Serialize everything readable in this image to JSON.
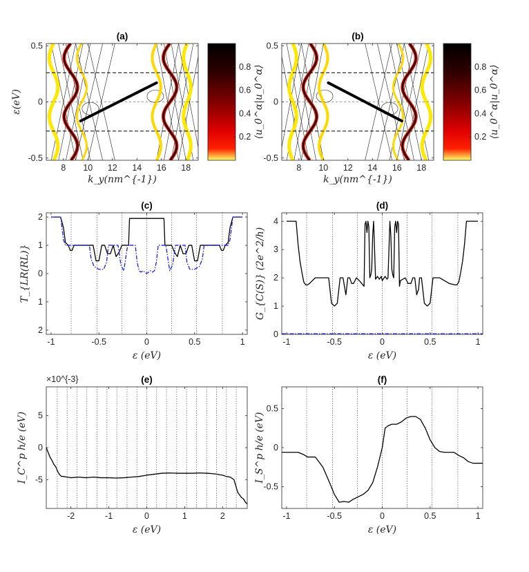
{
  "chart_data": [
    {
      "id": "a",
      "type": "line",
      "title": "(a)",
      "xlabel": "k_y(nm^{-1})",
      "ylabel": "ε(eV)",
      "xlim": [
        6.6,
        19
      ],
      "ylim": [
        -0.52,
        0.52
      ],
      "xticks": [
        "8",
        "10",
        "12",
        "14",
        "16",
        "18"
      ],
      "yticks": [
        "-0.5",
        "0",
        "0.5"
      ],
      "dashed_levels": [
        -0.26,
        0.26
      ],
      "colorbar": {
        "label": "⟨u_0^α|u_0^α⟩",
        "ticks": [
          "0.2",
          "0.4",
          "0.6",
          "0.8"
        ],
        "colors": [
          "#ffff60",
          "#ff0000",
          "#000000"
        ]
      },
      "edge_state": {
        "x": [
          9.4,
          15.6
        ],
        "y": [
          -0.17,
          0.17
        ],
        "color": "#000000"
      }
    },
    {
      "id": "b",
      "type": "line",
      "title": "(b)",
      "xlabel": "k_y(nm^{-1})",
      "ylabel": "",
      "xlim": [
        6.6,
        19
      ],
      "ylim": [
        -0.52,
        0.52
      ],
      "xticks": [
        "8",
        "10",
        "12",
        "14",
        "16",
        "18"
      ],
      "yticks": [
        "-0.5",
        "0",
        "0.5"
      ],
      "dashed_levels": [
        -0.26,
        0.26
      ],
      "colorbar": {
        "label": "⟨u_0^α|u_0^α⟩",
        "ticks": [
          "0.2",
          "0.4",
          "0.6",
          "0.8"
        ],
        "colors": [
          "#ffff60",
          "#ff0000",
          "#000000"
        ]
      },
      "edge_state": {
        "x": [
          10.4,
          16.4
        ],
        "y": [
          0.17,
          -0.17
        ],
        "color": "#000000"
      }
    },
    {
      "id": "c",
      "type": "line",
      "title": "(c)",
      "xlabel": "ε (eV)",
      "ylabel": "T_{LR(RL)}",
      "xlim": [
        -1.05,
        1.05
      ],
      "ylim": [
        -2.15,
        2.15
      ],
      "xticks": [
        "-1",
        "-0.5",
        "0",
        "0.5",
        "1"
      ],
      "yticks": [
        "2",
        "1",
        "0",
        "1",
        "2"
      ],
      "vlines": [
        -0.79,
        -0.52,
        -0.26,
        0,
        0.26,
        0.52,
        0.79
      ],
      "series": [
        {
          "color": "#000000",
          "style": "solid",
          "x": [
            -1.0,
            -0.9,
            -0.87,
            -0.85,
            -0.82,
            -0.8,
            -0.78,
            -0.76,
            -0.7,
            -0.56,
            -0.53,
            -0.5,
            -0.47,
            -0.44,
            -0.41,
            -0.38,
            -0.35,
            -0.32,
            -0.29,
            -0.26,
            -0.24,
            -0.19,
            -0.18,
            -0.17,
            -0.16,
            -0.15,
            -0.14,
            -0.13,
            -0.12,
            -0.11,
            -0.1,
            -0.09,
            -0.08,
            -0.07,
            -0.06,
            -0.05,
            -0.04,
            -0.03,
            -0.02,
            -0.01,
            0.0,
            0.01,
            0.02,
            0.03,
            0.04,
            0.05,
            0.06,
            0.07,
            0.08,
            0.09,
            0.1,
            0.11,
            0.12,
            0.13,
            0.14,
            0.15,
            0.16,
            0.17,
            0.18,
            0.19,
            0.24,
            0.26,
            0.29,
            0.32,
            0.35,
            0.38,
            0.41,
            0.44,
            0.47,
            0.5,
            0.53,
            0.56,
            0.7,
            0.76,
            0.78,
            0.8,
            0.82,
            0.85,
            0.87,
            0.9,
            1.0
          ],
          "y": [
            2.0,
            2.0,
            1.62,
            1.1,
            1.0,
            0.82,
            0.82,
            1.0,
            1.0,
            1.0,
            0.45,
            0.45,
            1.0,
            1.0,
            0.7,
            0.7,
            1.0,
            0.6,
            0.75,
            1.0,
            1.0,
            1.0,
            1.95,
            1.95,
            1.95,
            1.95,
            1.95,
            1.95,
            1.95,
            1.95,
            1.95,
            1.95,
            1.95,
            1.95,
            1.95,
            1.95,
            1.95,
            1.95,
            1.95,
            1.95,
            1.95,
            1.95,
            1.95,
            1.95,
            1.95,
            1.95,
            1.95,
            1.95,
            1.95,
            1.95,
            1.95,
            1.95,
            1.95,
            1.95,
            1.95,
            1.95,
            1.95,
            1.95,
            1.95,
            1.0,
            1.0,
            1.0,
            0.75,
            0.6,
            1.0,
            0.7,
            0.7,
            1.0,
            1.0,
            0.45,
            0.45,
            1.0,
            1.0,
            1.0,
            0.82,
            0.82,
            1.0,
            1.1,
            1.62,
            2.0,
            2.0
          ]
        },
        {
          "color": "#2020e0",
          "style": "dashdot",
          "x": [
            -1.0,
            -0.9,
            -0.87,
            -0.85,
            -0.82,
            -0.78,
            -0.6,
            -0.58,
            -0.55,
            -0.5,
            -0.45,
            -0.42,
            -0.4,
            -0.36,
            -0.3,
            -0.27,
            -0.24,
            -0.2,
            -0.18,
            -0.16,
            -0.14,
            -0.12,
            -0.1,
            -0.08,
            -0.06,
            -0.04,
            -0.02,
            0.0,
            0.02,
            0.04,
            0.06,
            0.08,
            0.1,
            0.12,
            0.14,
            0.16,
            0.18,
            0.2,
            0.24,
            0.27,
            0.3,
            0.36,
            0.4,
            0.42,
            0.45,
            0.5,
            0.55,
            0.58,
            0.6,
            0.78,
            0.82,
            0.85,
            0.87,
            0.9,
            1.0
          ],
          "y": [
            2.0,
            2.0,
            1.2,
            1.0,
            1.0,
            1.0,
            1.0,
            0.5,
            0.25,
            0.15,
            0.15,
            0.4,
            1.0,
            1.0,
            1.0,
            0.3,
            0.1,
            1.0,
            1.0,
            1.0,
            1.0,
            1.0,
            0.4,
            0.1,
            0.05,
            0.1,
            0.05,
            0.0,
            0.05,
            0.1,
            0.05,
            0.1,
            0.4,
            1.0,
            1.0,
            1.0,
            1.0,
            1.0,
            0.1,
            0.3,
            1.0,
            1.0,
            1.0,
            0.4,
            0.15,
            0.15,
            0.25,
            0.5,
            1.0,
            1.0,
            1.0,
            1.0,
            1.2,
            2.0,
            2.0
          ]
        }
      ]
    },
    {
      "id": "d",
      "type": "line",
      "title": "(d)",
      "xlabel": "ε (eV)",
      "ylabel": "G_{C(S)} (2e^2/h)",
      "xlim": [
        -1.05,
        1.05
      ],
      "ylim": [
        0,
        4.3
      ],
      "xticks": [
        "-1",
        "-0.5",
        "0",
        "0.5",
        "1"
      ],
      "yticks": [
        "0",
        "1",
        "2",
        "3",
        "4"
      ],
      "vlines": [
        -0.79,
        -0.52,
        -0.26,
        0,
        0.26,
        0.52,
        0.79
      ],
      "series": [
        {
          "color": "#000000",
          "style": "solid",
          "x": [
            -1.0,
            -0.9,
            -0.88,
            -0.86,
            -0.84,
            -0.82,
            -0.8,
            -0.78,
            -0.76,
            -0.7,
            -0.6,
            -0.56,
            -0.53,
            -0.5,
            -0.47,
            -0.44,
            -0.41,
            -0.39,
            -0.38,
            -0.36,
            -0.34,
            -0.32,
            -0.3,
            -0.27,
            -0.24,
            -0.19,
            -0.18,
            -0.17,
            -0.16,
            -0.15,
            -0.14,
            -0.13,
            -0.12,
            -0.11,
            -0.1,
            -0.09,
            -0.08,
            -0.07,
            -0.06,
            -0.05,
            -0.04,
            -0.03,
            -0.02,
            -0.01,
            0.0,
            0.01,
            0.02,
            0.03,
            0.04,
            0.05,
            0.06,
            0.07,
            0.08,
            0.09,
            0.1,
            0.11,
            0.12,
            0.13,
            0.14,
            0.15,
            0.16,
            0.17,
            0.18,
            0.19,
            0.24,
            0.27,
            0.3,
            0.32,
            0.34,
            0.36,
            0.38,
            0.39,
            0.41,
            0.44,
            0.47,
            0.5,
            0.53,
            0.56,
            0.6,
            0.7,
            0.76,
            0.78,
            0.8,
            0.82,
            0.84,
            0.86,
            0.88,
            0.9,
            1.0
          ],
          "y": [
            4.0,
            4.0,
            3.2,
            2.6,
            2.2,
            1.85,
            1.75,
            1.75,
            1.8,
            2.0,
            2.0,
            2.0,
            1.1,
            1.0,
            1.1,
            2.0,
            2.0,
            1.6,
            1.4,
            2.0,
            2.0,
            1.8,
            1.8,
            2.0,
            1.9,
            1.7,
            3.9,
            4.0,
            3.6,
            4.0,
            3.8,
            2.0,
            2.1,
            2.3,
            3.5,
            4.0,
            3.0,
            1.95,
            2.0,
            2.05,
            2.0,
            1.95,
            2.0,
            2.05,
            1.9,
            1.95,
            2.0,
            2.05,
            2.0,
            1.95,
            2.0,
            3.0,
            4.0,
            3.5,
            2.3,
            2.1,
            2.0,
            3.8,
            4.0,
            3.6,
            4.0,
            3.9,
            1.7,
            1.9,
            2.0,
            1.8,
            1.8,
            2.0,
            2.0,
            1.4,
            1.6,
            2.0,
            2.0,
            1.1,
            1.0,
            1.1,
            2.0,
            2.0,
            2.0,
            1.8,
            1.75,
            1.75,
            1.85,
            2.2,
            2.6,
            3.2,
            4.0,
            4.0,
            4.0
          ]
        },
        {
          "color": "#2020e0",
          "style": "dashdot",
          "x": [
            -1.05,
            1.05
          ],
          "y": [
            0.02,
            0.02
          ]
        }
      ]
    },
    {
      "id": "e",
      "type": "line",
      "title": "(e)",
      "xlabel": "ε (eV)",
      "ylabel": "I_C^p h/e (eV)",
      "scale_note": "×10^{-3}",
      "xlim": [
        -2.65,
        2.65
      ],
      "ylim": [
        -9.5,
        9.5
      ],
      "xticks": [
        "-2",
        "-1",
        "0",
        "1",
        "2"
      ],
      "yticks": [
        "5",
        "0",
        "-5"
      ],
      "vlines": [
        -2.36,
        -2.1,
        -1.84,
        -1.58,
        -1.31,
        -1.05,
        -0.79,
        -0.52,
        -0.26,
        0,
        0.26,
        0.52,
        0.79,
        1.05,
        1.31,
        1.58,
        1.84,
        2.1,
        2.36
      ],
      "series": [
        {
          "color": "#000000",
          "style": "solid",
          "x": [
            -2.65,
            -2.55,
            -2.5,
            -2.45,
            -2.4,
            -2.35,
            -2.3,
            -2.25,
            -2.2,
            -2.1,
            -2.0,
            -1.8,
            -1.6,
            -1.4,
            -1.2,
            -1.0,
            -0.8,
            -0.6,
            -0.4,
            -0.2,
            0.0,
            0.2,
            0.4,
            0.6,
            0.8,
            1.0,
            1.2,
            1.4,
            1.6,
            1.8,
            2.0,
            2.1,
            2.2,
            2.3,
            2.35,
            2.4,
            2.5,
            2.55,
            2.6,
            2.65
          ],
          "y": [
            0.0,
            -1.5,
            -2.0,
            -2.6,
            -3.0,
            -3.7,
            -4.2,
            -4.5,
            -4.5,
            -4.6,
            -4.7,
            -4.6,
            -4.7,
            -4.6,
            -4.7,
            -4.7,
            -4.75,
            -4.7,
            -4.6,
            -4.5,
            -4.3,
            -4.15,
            -4.0,
            -3.95,
            -4.0,
            -4.0,
            -4.0,
            -3.95,
            -4.0,
            -4.1,
            -4.3,
            -4.5,
            -4.6,
            -5.0,
            -6.0,
            -7.0,
            -7.8,
            -8.0,
            -8.5,
            -8.8
          ]
        }
      ]
    },
    {
      "id": "f",
      "type": "line",
      "title": "(f)",
      "xlabel": "ε (eV)",
      "ylabel": "I_S^p h/e (eV)",
      "xlim": [
        -1.05,
        1.05
      ],
      "ylim": [
        -0.78,
        0.78
      ],
      "xticks": [
        "-1",
        "-0.5",
        "0",
        "0.5",
        "1"
      ],
      "yticks": [
        "0.5",
        "0",
        "-0.5"
      ],
      "vlines": [
        -0.79,
        -0.52,
        -0.26,
        0,
        0.26,
        0.52,
        0.79
      ],
      "series": [
        {
          "color": "#000000",
          "style": "solid",
          "x": [
            -1.05,
            -0.95,
            -0.88,
            -0.82,
            -0.78,
            -0.76,
            -0.74,
            -0.7,
            -0.62,
            -0.55,
            -0.5,
            -0.45,
            -0.4,
            -0.35,
            -0.3,
            -0.25,
            -0.2,
            -0.15,
            -0.1,
            -0.05,
            0.0,
            0.03,
            0.06,
            0.1,
            0.15,
            0.2,
            0.25,
            0.3,
            0.35,
            0.4,
            0.45,
            0.5,
            0.55,
            0.6,
            0.65,
            0.7,
            0.75,
            0.8,
            0.85,
            0.9,
            0.95,
            1.05
          ],
          "y": [
            -0.06,
            -0.06,
            -0.06,
            -0.09,
            -0.12,
            -0.12,
            -0.12,
            -0.12,
            -0.25,
            -0.45,
            -0.6,
            -0.7,
            -0.69,
            -0.7,
            -0.66,
            -0.63,
            -0.6,
            -0.55,
            -0.45,
            -0.25,
            0.0,
            0.25,
            0.28,
            0.3,
            0.3,
            0.33,
            0.38,
            0.4,
            0.4,
            0.36,
            0.25,
            0.1,
            0.0,
            -0.05,
            -0.06,
            -0.06,
            -0.06,
            -0.1,
            -0.13,
            -0.18,
            -0.2,
            -0.2
          ]
        }
      ]
    }
  ]
}
